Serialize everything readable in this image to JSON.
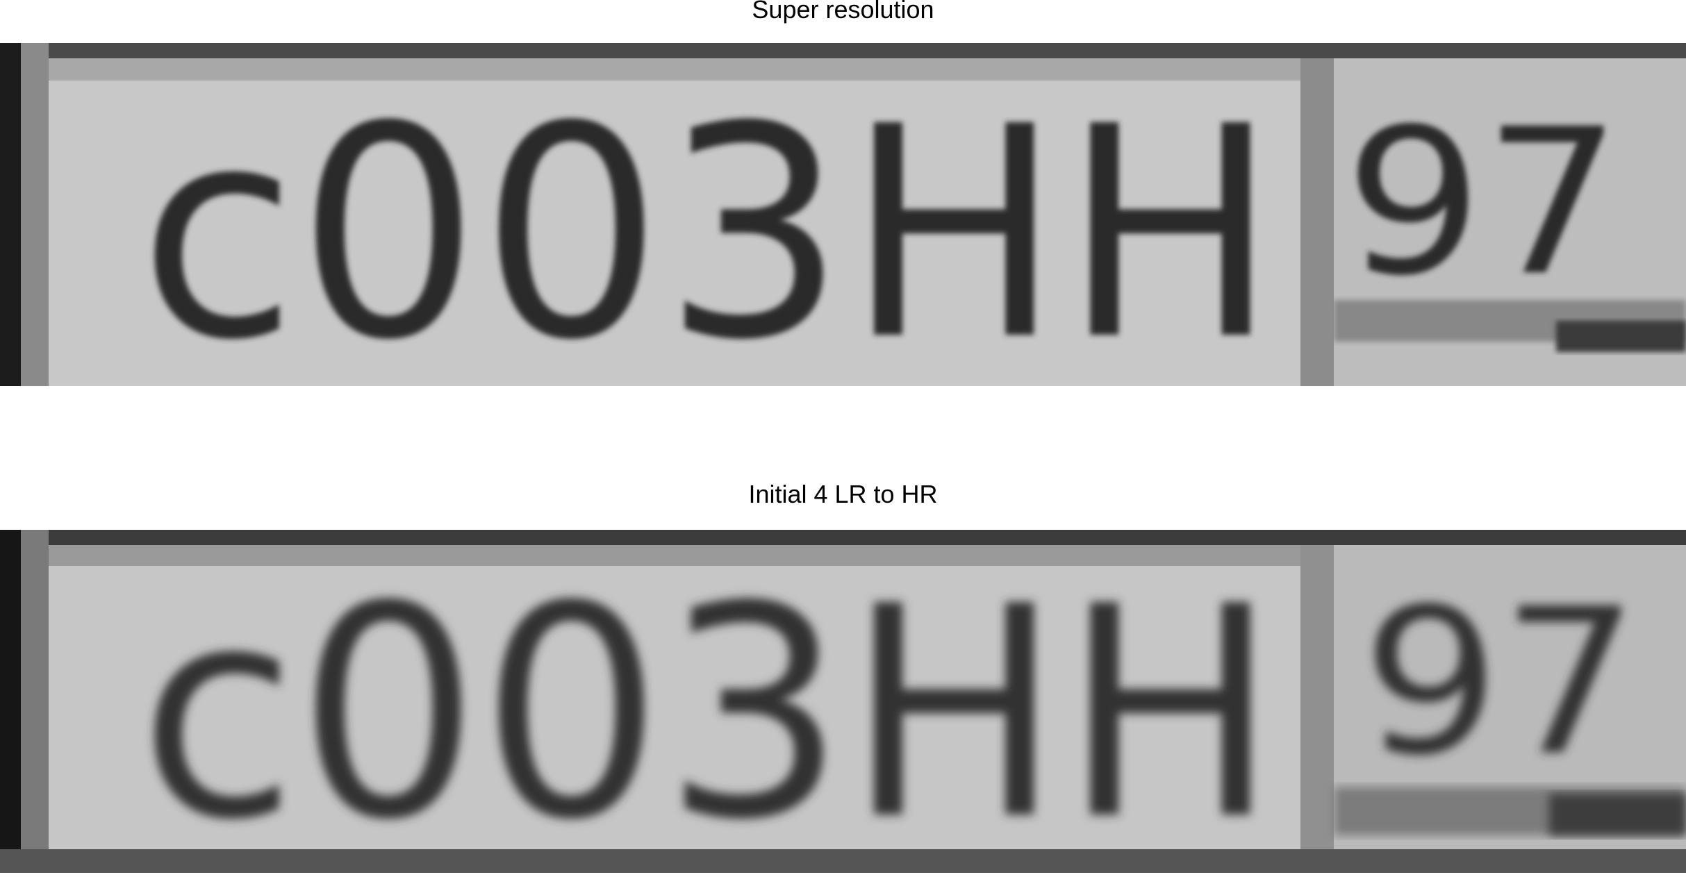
{
  "panels": [
    {
      "title": "Super resolution",
      "plate_text": {
        "main": "c003HH",
        "region": "97"
      }
    },
    {
      "title": "Initial 4 LR to HR",
      "plate_text": {
        "main": "c003HH",
        "region": "97"
      }
    }
  ],
  "colors": {
    "background": "#ffffff",
    "plate_fill": "#c4c4c4",
    "plate_border": "#5a5a5a",
    "character_ink": "#2a2a2a",
    "left_edge": "#1a1a1a"
  }
}
